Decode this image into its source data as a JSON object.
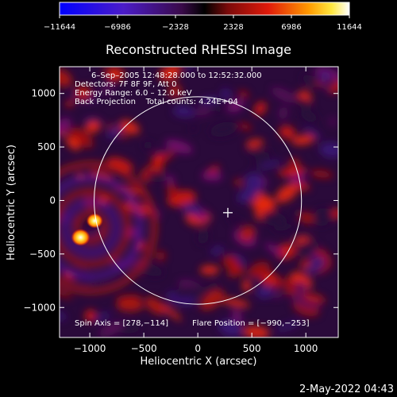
{
  "window": {
    "footer_timestamp": "2-May-2022 04:43"
  },
  "colorbar": {
    "colormap": "blue-purple-red-yellow-white",
    "tick_labels": [
      "−11644",
      "−6986",
      "−2328",
      "2328",
      "6986",
      "11644"
    ],
    "range": [
      -11644,
      11644
    ]
  },
  "chart_data": {
    "type": "heatmap",
    "title": "Reconstructed RHESSI Image",
    "xlabel": "Heliocentric X (arcsec)",
    "ylabel": "Heliocentric Y (arcsec)",
    "xlim": [
      -1280,
      1300
    ],
    "ylim": [
      -1280,
      1250
    ],
    "x_ticks": [
      -1000,
      -500,
      0,
      500,
      1000
    ],
    "y_ticks": [
      1000,
      500,
      0,
      -500,
      -1000
    ],
    "x_tick_labels": [
      "−1000",
      "−500",
      "0",
      "500",
      "1000"
    ],
    "y_tick_labels": [
      "1000",
      "500",
      "0",
      "−500",
      "−1000"
    ],
    "solar_limb_radius_arcsec": 960,
    "spin_axis": [
      278,
      -114
    ],
    "flare_position": [
      -990,
      -253
    ],
    "info_lines": [
      "6–Sep–2005 12:48:28.000 to 12:52:32.000",
      "Detectors: 7F 8F 9F, Att 0",
      "Energy Range: 6.0 – 12.0 keV",
      "Back Projection    Total counts: 4.24E+04"
    ],
    "footer_left": "Spin Axis = [278,−114]",
    "footer_right": "Flare Position = [−990,−253]",
    "bright_sources": [
      {
        "x": -1085,
        "y": -345,
        "level": 1.0
      },
      {
        "x": -955,
        "y": -190,
        "level": 0.85
      }
    ],
    "grid": false
  }
}
